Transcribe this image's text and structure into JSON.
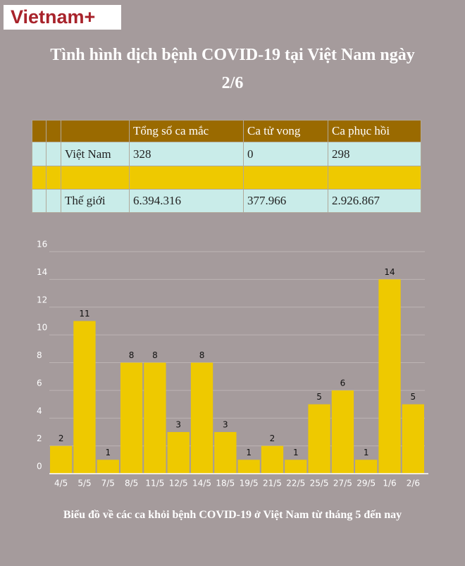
{
  "logo": "Vietnam+",
  "title": "Tình hình dịch bệnh COVID-19 tại Việt Nam ngày 2/6",
  "table": {
    "header": [
      "Tổng số ca mắc",
      "Ca tử vong",
      "Ca phục hồi"
    ],
    "rows": [
      {
        "label": "Việt Nam",
        "cells": [
          "328",
          "0",
          "298"
        ]
      },
      {
        "label": "Thế giới",
        "cells": [
          "6.394.316",
          "377.966",
          "2.926.867"
        ]
      }
    ]
  },
  "chart_data": {
    "type": "bar",
    "caption": "Biểu đồ về các ca khỏi bệnh COVID-19 ở Việt Nam từ tháng 5 đến nay",
    "categories": [
      "4/5",
      "5/5",
      "7/5",
      "8/5",
      "11/5",
      "12/5",
      "14/5",
      "18/5",
      "19/5",
      "21/5",
      "22/5",
      "25/5",
      "27/5",
      "29/5",
      "1/6",
      "2/6"
    ],
    "values": [
      2,
      11,
      1,
      8,
      8,
      3,
      8,
      3,
      1,
      2,
      1,
      5,
      6,
      1,
      14,
      5
    ],
    "color": "#eec900",
    "ylim": [
      0,
      16
    ],
    "yticks": [
      0,
      2,
      4,
      6,
      8,
      10,
      12,
      14,
      16
    ],
    "grid": true
  }
}
